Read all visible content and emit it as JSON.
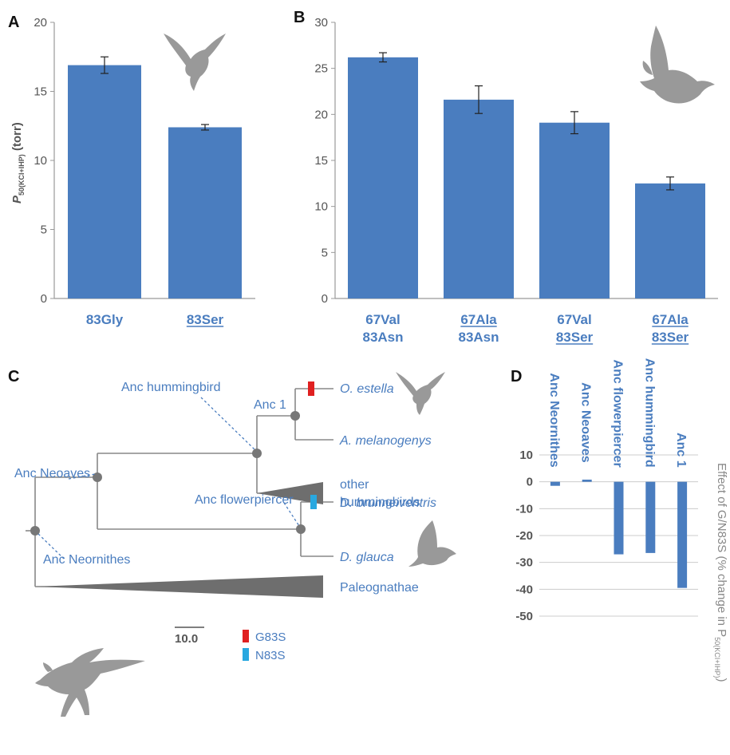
{
  "colors": {
    "bar": "#4a7dbf",
    "axis": "#999999",
    "tree": "#888888",
    "node": "#777777",
    "wedge": "#6e6e6e",
    "g83s": "#e02020",
    "n83s": "#29a8e0",
    "silhouette": "#999999"
  },
  "panels": {
    "a": "A",
    "b": "B",
    "c": "C",
    "d": "D"
  },
  "chart_data": [
    {
      "type": "bar",
      "panel": "A",
      "ylabel_main": "P",
      "ylabel_sub": "50(KCI+IHP)",
      "ylabel_unit": " (torr)",
      "ylim": [
        0,
        20
      ],
      "yticks": [
        0,
        5,
        10,
        15,
        20
      ],
      "categories": [
        [
          "83Gly"
        ],
        [
          "83Ser"
        ]
      ],
      "underlined": [
        [
          false
        ],
        [
          true
        ]
      ],
      "values": [
        16.9,
        12.4
      ],
      "errors": [
        0.6,
        0.2
      ],
      "grid": false
    },
    {
      "type": "bar",
      "panel": "B",
      "ylim": [
        0,
        30
      ],
      "yticks": [
        0,
        5,
        10,
        15,
        20,
        25,
        30
      ],
      "categories": [
        [
          "67Val",
          "83Asn"
        ],
        [
          "67Ala",
          "83Asn"
        ],
        [
          "67Val",
          "83Ser"
        ],
        [
          "67Ala",
          "83Ser"
        ]
      ],
      "underlined": [
        [
          false,
          false
        ],
        [
          true,
          false
        ],
        [
          false,
          true
        ],
        [
          true,
          true
        ]
      ],
      "values": [
        26.2,
        21.6,
        19.1,
        12.5
      ],
      "errors": [
        0.5,
        1.5,
        1.2,
        0.7
      ],
      "grid": false
    },
    {
      "type": "bar",
      "panel": "D",
      "ylabel_main": "Effect of G/N83S (% change in P",
      "ylabel_sub": "50(KCI+IHP)",
      "ylabel_end": ")",
      "ylim": [
        -50,
        10
      ],
      "yticks": [
        10,
        0,
        -10,
        -20,
        -30,
        -40,
        -50
      ],
      "categories": [
        "Anc Neornithes",
        "Anc Neoaves",
        "Anc flowerpiercer",
        "Anc hummingbird",
        "Anc 1"
      ],
      "values": [
        -1.5,
        0.8,
        -27,
        -26.5,
        -39.5
      ],
      "grid": true
    }
  ],
  "tree": {
    "nodes": {
      "anc_hummingbird": "Anc hummingbird",
      "anc1": "Anc 1",
      "anc_neoaves": "Anc Neoaves",
      "anc_flowerpiercer": "Anc flowerpiercer",
      "anc_neornithes": "Anc Neornithes"
    },
    "taxa": {
      "o_estella": "O. estella",
      "a_melanogenys": "A. melanogenys",
      "d_brunneiventris": "D. brunneiventris",
      "d_glauca": "D. glauca"
    },
    "clades": {
      "other_line1": "other",
      "other_line2": "hummingbirds",
      "paleognathae": "Paleognathae"
    },
    "scale": "10.0",
    "legend": {
      "g83s": "G83S",
      "n83s": "N83S"
    }
  },
  "icons": {
    "a": "hummingbird-silhouette-icon",
    "b": "songbird-silhouette-icon",
    "c1": "hummingbird-silhouette-icon",
    "c2": "songbird-silhouette-icon",
    "c3": "dinosaur-bird-silhouette-icon"
  }
}
